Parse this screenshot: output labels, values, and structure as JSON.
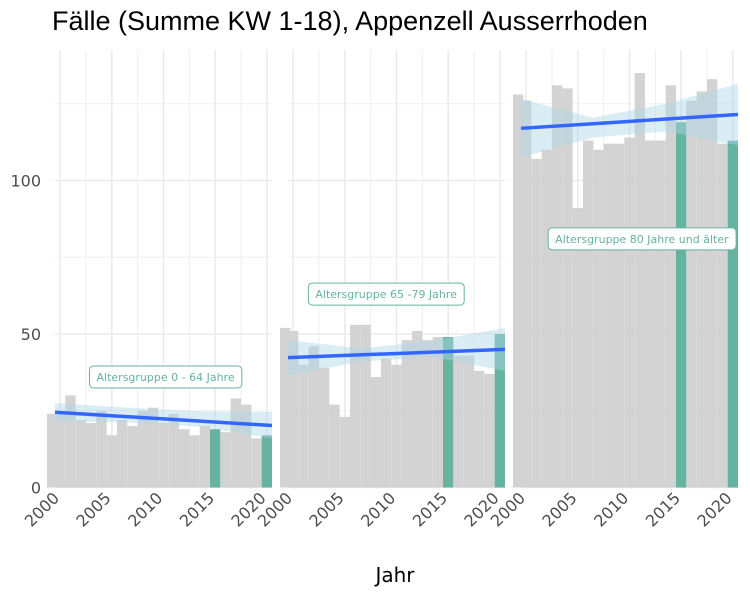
{
  "chart_data": {
    "type": "bar",
    "title": "Fälle (Summe KW 1-18), Appenzell Ausserrhoden",
    "xlabel": "Jahr",
    "ylabel": "",
    "ylim": [
      0,
      140
    ],
    "xlim": [
      1999.5,
      2020.5
    ],
    "x_ticks": [
      "2000",
      "2005",
      "2010",
      "2015",
      "2020"
    ],
    "y_ticks": [
      "0",
      "50",
      "100"
    ],
    "grid": true,
    "colors": {
      "bar": "#d3d3d3",
      "highlight_bar": "#66b3a0",
      "trend_line": "#3366ff",
      "confidence_band": "#add8e6",
      "label_border": "#66b3a0",
      "label_text": "#66b3a0",
      "grid": "#ebebeb"
    },
    "years": [
      1999,
      2000,
      2001,
      2002,
      2003,
      2004,
      2005,
      2006,
      2007,
      2008,
      2009,
      2010,
      2011,
      2012,
      2013,
      2014,
      2015,
      2016,
      2017,
      2018,
      2019,
      2020
    ],
    "highlight_years": [
      2015,
      2020
    ],
    "panels": [
      {
        "label": "Altersgruppe 0 - 64 Jahre",
        "label_pos": [
          2010.2,
          36
        ],
        "values": [
          24,
          24,
          30,
          22,
          21,
          25,
          17,
          22,
          20,
          25,
          26,
          21,
          24,
          19,
          17,
          20,
          19,
          18,
          29,
          27,
          16,
          17
        ],
        "trend": {
          "start": 24.5,
          "end": 20.2
        },
        "ci": {
          "upper": [
            27.5,
            26.0,
            24.8,
            24.6
          ],
          "lower": [
            21.5,
            21.3,
            19.8,
            16.0
          ]
        }
      },
      {
        "label": "Altersgruppe 65 -79 Jahre",
        "label_pos": [
          2009.0,
          63
        ],
        "values": [
          52,
          51,
          40,
          46,
          39,
          27,
          23,
          53,
          53,
          36,
          42,
          40,
          48,
          51,
          48,
          49,
          49,
          43,
          43,
          38,
          37,
          50
        ],
        "trend": {
          "start": 42.3,
          "end": 45.0
        },
        "ci": {
          "upper": [
            48.0,
            45.3,
            47.8,
            52.0
          ],
          "lower": [
            36.5,
            41.0,
            42.5,
            38.0
          ]
        }
      },
      {
        "label": "Altersgruppe 80 Jahre und älter",
        "label_pos": [
          2011.2,
          81
        ],
        "values": [
          128,
          126,
          107,
          110,
          131,
          130,
          91,
          113,
          110,
          112,
          112,
          114,
          135,
          113,
          113,
          131,
          119,
          126,
          129,
          133,
          112,
          113
        ],
        "trend": {
          "start": 117.0,
          "end": 121.5
        },
        "ci": {
          "upper": [
            126.5,
            120.5,
            125.0,
            131.5
          ],
          "lower": [
            107.5,
            114.0,
            116.0,
            111.5
          ]
        }
      }
    ]
  }
}
